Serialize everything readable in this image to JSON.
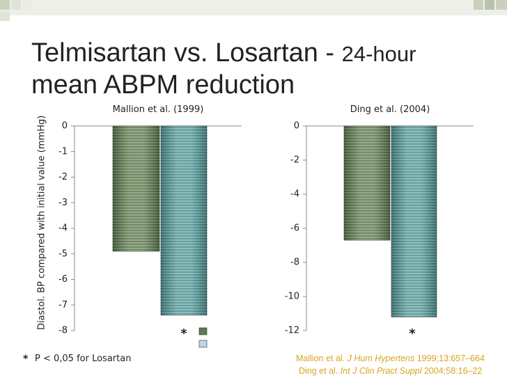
{
  "title_line1": "Telmisartan vs. Losartan -",
  "title_line1_small": "24-hour",
  "title_line2": "mean ABPM reduction",
  "ylabel": "Diastol. BP compared with initial value (mmHg)",
  "chart_data": [
    {
      "type": "bar",
      "title": "Mallion et al. (1999)",
      "categories": [
        null,
        null
      ],
      "values": [
        -4.9,
        -7.4
      ],
      "colors": [
        "#5d7d4c",
        "#4f9c9c"
      ],
      "ylim": [
        -8,
        0
      ],
      "yticks": [
        0,
        -1,
        -2,
        -3,
        -4,
        -5,
        -6,
        -7,
        -8
      ],
      "annotation": "*"
    },
    {
      "type": "bar",
      "title": "Ding et al. (2004)",
      "categories": [
        null,
        null
      ],
      "values": [
        -6.7,
        -11.2
      ],
      "colors": [
        "#5d7d4c",
        "#4f9c9c"
      ],
      "ylim": [
        -12,
        0
      ],
      "yticks": [
        0,
        -2,
        -4,
        -6,
        -8,
        -10,
        -12
      ],
      "annotation": "*"
    }
  ],
  "footnote": {
    "marker": "*",
    "text": "P < 0,05 for Losartan"
  },
  "references": [
    {
      "authors": "Mallion et al.",
      "journal": "J Hum Hypertens",
      "details": "1999;13:657–664"
    },
    {
      "authors": "Ding et al.",
      "journal": "Int J Clin Pract Suppl",
      "details": "2004;58:16–22"
    }
  ]
}
